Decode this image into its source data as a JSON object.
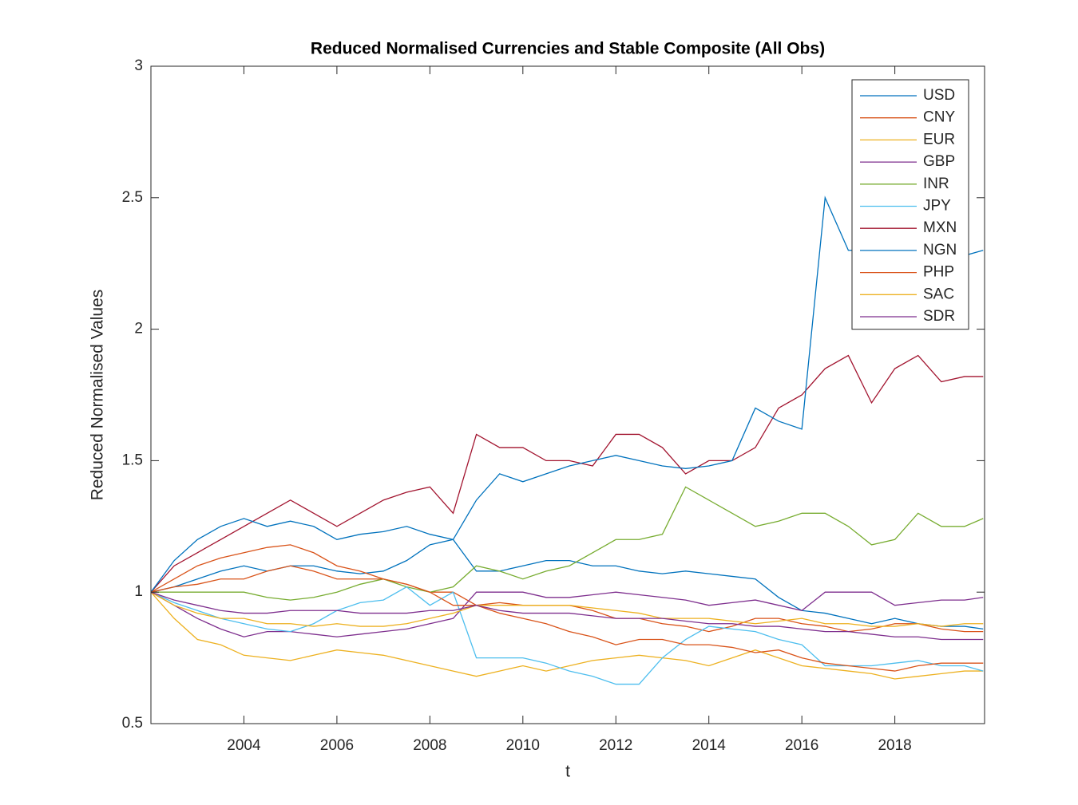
{
  "chart_data": {
    "type": "line",
    "title": "Reduced Normalised Currencies and Stable Composite (All Obs)",
    "xlabel": "t",
    "ylabel": "Reduced Normalised Values",
    "x": [
      2002,
      2002.5,
      2003,
      2003.5,
      2004,
      2004.5,
      2005,
      2005.5,
      2006,
      2006.5,
      2007,
      2007.5,
      2008,
      2008.5,
      2009,
      2009.5,
      2010,
      2010.5,
      2011,
      2011.5,
      2012,
      2012.5,
      2013,
      2013.5,
      2014,
      2014.5,
      2015,
      2015.5,
      2016,
      2016.5,
      2017,
      2017.5,
      2018,
      2018.5,
      2019,
      2019.5,
      2019.9
    ],
    "series": [
      {
        "name": "USD",
        "color": "#0072BD",
        "values": [
          1,
          1.02,
          1.05,
          1.08,
          1.1,
          1.08,
          1.1,
          1.1,
          1.08,
          1.07,
          1.08,
          1.12,
          1.18,
          1.2,
          1.08,
          1.08,
          1.1,
          1.12,
          1.12,
          1.1,
          1.1,
          1.08,
          1.07,
          1.08,
          1.07,
          1.06,
          1.05,
          0.98,
          0.93,
          0.92,
          0.9,
          0.88,
          0.9,
          0.88,
          0.87,
          0.87,
          0.86
        ]
      },
      {
        "name": "CNY",
        "color": "#D95319",
        "values": [
          1,
          1.05,
          1.1,
          1.13,
          1.15,
          1.17,
          1.18,
          1.15,
          1.1,
          1.08,
          1.05,
          1.03,
          1.0,
          1.0,
          0.95,
          0.96,
          0.95,
          0.95,
          0.95,
          0.93,
          0.9,
          0.9,
          0.88,
          0.87,
          0.85,
          0.87,
          0.9,
          0.9,
          0.88,
          0.87,
          0.85,
          0.86,
          0.88,
          0.88,
          0.86,
          0.85,
          0.85
        ]
      },
      {
        "name": "EUR",
        "color": "#EDB120",
        "values": [
          1,
          0.9,
          0.82,
          0.8,
          0.76,
          0.75,
          0.74,
          0.76,
          0.78,
          0.77,
          0.76,
          0.74,
          0.72,
          0.7,
          0.68,
          0.7,
          0.72,
          0.7,
          0.72,
          0.74,
          0.75,
          0.76,
          0.75,
          0.74,
          0.72,
          0.75,
          0.78,
          0.75,
          0.72,
          0.71,
          0.7,
          0.69,
          0.67,
          0.68,
          0.69,
          0.7,
          0.7
        ]
      },
      {
        "name": "GBP",
        "color": "#7E2F8E",
        "values": [
          1,
          0.95,
          0.9,
          0.86,
          0.83,
          0.85,
          0.85,
          0.84,
          0.83,
          0.84,
          0.85,
          0.86,
          0.88,
          0.9,
          1.0,
          1.0,
          1.0,
          0.98,
          0.98,
          0.99,
          1.0,
          0.99,
          0.98,
          0.97,
          0.95,
          0.96,
          0.97,
          0.95,
          0.93,
          1.0,
          1.0,
          1.0,
          0.95,
          0.96,
          0.97,
          0.97,
          0.98
        ]
      },
      {
        "name": "INR",
        "color": "#77AC30",
        "values": [
          1,
          1.0,
          1.0,
          1.0,
          1.0,
          0.98,
          0.97,
          0.98,
          1.0,
          1.03,
          1.05,
          1.02,
          1.0,
          1.02,
          1.1,
          1.08,
          1.05,
          1.08,
          1.1,
          1.15,
          1.2,
          1.2,
          1.22,
          1.4,
          1.35,
          1.3,
          1.25,
          1.27,
          1.3,
          1.3,
          1.25,
          1.18,
          1.2,
          1.3,
          1.25,
          1.25,
          1.28
        ]
      },
      {
        "name": "JPY",
        "color": "#4DBEEE",
        "values": [
          1,
          0.96,
          0.93,
          0.9,
          0.88,
          0.86,
          0.85,
          0.88,
          0.93,
          0.96,
          0.97,
          1.02,
          0.95,
          1.0,
          0.75,
          0.75,
          0.75,
          0.73,
          0.7,
          0.68,
          0.65,
          0.65,
          0.75,
          0.82,
          0.87,
          0.86,
          0.85,
          0.82,
          0.8,
          0.72,
          0.72,
          0.72,
          0.73,
          0.74,
          0.72,
          0.72,
          0.7
        ]
      },
      {
        "name": "MXN",
        "color": "#A2142F",
        "values": [
          1,
          1.1,
          1.15,
          1.2,
          1.25,
          1.3,
          1.35,
          1.3,
          1.25,
          1.3,
          1.35,
          1.38,
          1.4,
          1.3,
          1.6,
          1.55,
          1.55,
          1.5,
          1.5,
          1.48,
          1.6,
          1.6,
          1.55,
          1.45,
          1.5,
          1.5,
          1.55,
          1.7,
          1.75,
          1.85,
          1.9,
          1.72,
          1.85,
          1.9,
          1.8,
          1.82,
          1.82
        ]
      },
      {
        "name": "NGN",
        "color": "#0072BD",
        "values": [
          1,
          1.12,
          1.2,
          1.25,
          1.28,
          1.25,
          1.27,
          1.25,
          1.2,
          1.22,
          1.23,
          1.25,
          1.22,
          1.2,
          1.35,
          1.45,
          1.42,
          1.45,
          1.48,
          1.5,
          1.52,
          1.5,
          1.48,
          1.47,
          1.48,
          1.5,
          1.7,
          1.65,
          1.62,
          2.5,
          2.3,
          2.3,
          2.3,
          2.28,
          2.3,
          2.28,
          2.3
        ]
      },
      {
        "name": "PHP",
        "color": "#D95319",
        "values": [
          1,
          1.02,
          1.03,
          1.05,
          1.05,
          1.08,
          1.1,
          1.08,
          1.05,
          1.05,
          1.05,
          1.03,
          1.0,
          0.95,
          0.95,
          0.92,
          0.9,
          0.88,
          0.85,
          0.83,
          0.8,
          0.82,
          0.82,
          0.8,
          0.8,
          0.79,
          0.77,
          0.78,
          0.75,
          0.73,
          0.72,
          0.71,
          0.7,
          0.72,
          0.73,
          0.73,
          0.73
        ]
      },
      {
        "name": "SAC",
        "color": "#EDB120",
        "values": [
          1,
          0.95,
          0.92,
          0.9,
          0.9,
          0.88,
          0.88,
          0.87,
          0.88,
          0.87,
          0.87,
          0.88,
          0.9,
          0.92,
          0.95,
          0.95,
          0.95,
          0.95,
          0.95,
          0.94,
          0.93,
          0.92,
          0.9,
          0.9,
          0.9,
          0.89,
          0.88,
          0.89,
          0.9,
          0.88,
          0.88,
          0.87,
          0.87,
          0.88,
          0.87,
          0.88,
          0.88
        ]
      },
      {
        "name": "SDR",
        "color": "#7E2F8E",
        "values": [
          1,
          0.97,
          0.95,
          0.93,
          0.92,
          0.92,
          0.93,
          0.93,
          0.93,
          0.92,
          0.92,
          0.92,
          0.93,
          0.93,
          0.95,
          0.93,
          0.92,
          0.92,
          0.92,
          0.91,
          0.9,
          0.9,
          0.9,
          0.89,
          0.88,
          0.88,
          0.87,
          0.87,
          0.86,
          0.85,
          0.85,
          0.84,
          0.83,
          0.83,
          0.82,
          0.82,
          0.82
        ]
      }
    ],
    "xlim": [
      2002,
      2019.93
    ],
    "xticks": [
      2004,
      2006,
      2008,
      2010,
      2012,
      2014,
      2016,
      2018
    ],
    "ylim": [
      0.5,
      3
    ],
    "yticks": [
      0.5,
      1,
      1.5,
      2,
      2.5,
      3
    ],
    "grid": false,
    "legend": "northeast"
  }
}
